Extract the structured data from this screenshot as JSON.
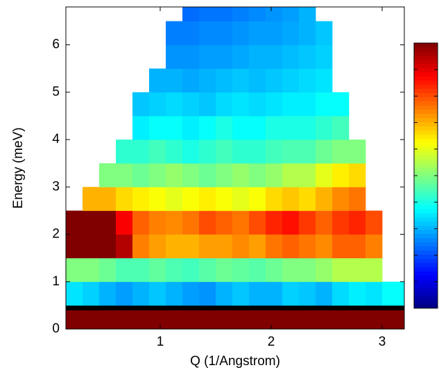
{
  "chart_data": {
    "type": "heatmap",
    "x_label": "Q (1/Angstrom)",
    "y_label": "Energy (meV)",
    "xlim": [
      0.15,
      3.2
    ],
    "ylim": [
      0,
      6.8
    ],
    "xticks": [
      1,
      2,
      3
    ],
    "yticks": [
      0,
      1,
      2,
      3,
      4,
      5,
      6
    ],
    "x_edges": [
      0.15,
      0.3,
      0.45,
      0.6,
      0.75,
      0.9,
      1.05,
      1.2,
      1.35,
      1.5,
      1.65,
      1.8,
      1.95,
      2.1,
      2.25,
      2.4,
      2.55,
      2.7,
      2.85,
      3.0,
      3.2
    ],
    "y_edges": [
      0,
      0.4,
      0.5,
      1,
      1.5,
      2,
      2.5,
      3,
      3.5,
      4,
      4.5,
      5,
      5.5,
      6,
      6.5,
      6.8
    ],
    "zlim": [
      0,
      1
    ],
    "zticks": [
      0.1,
      0.2,
      0.3,
      0.4,
      0.5,
      0.6,
      0.7,
      0.8,
      0.9
    ],
    "colormap": "jet",
    "under_color": "#000000",
    "z": [
      [
        1,
        1,
        1,
        1,
        1,
        1,
        1,
        1,
        1,
        1,
        1,
        1,
        1,
        1,
        1,
        1,
        1,
        1,
        1,
        1
      ],
      [
        -0.1,
        -0.1,
        -0.1,
        -0.1,
        -0.1,
        -0.1,
        -0.1,
        -0.1,
        -0.1,
        -0.1,
        -0.1,
        -0.1,
        -0.1,
        -0.1,
        -0.1,
        -0.1,
        -0.1,
        -0.1,
        -0.1,
        -0.1
      ],
      [
        0.35,
        0.33,
        0.3,
        0.28,
        0.3,
        0.32,
        0.3,
        0.28,
        0.27,
        0.3,
        0.32,
        0.3,
        0.3,
        0.33,
        0.32,
        0.3,
        0.34,
        0.36,
        0.35,
        0.38
      ],
      [
        0.5,
        0.5,
        0.48,
        0.45,
        0.45,
        0.47,
        0.45,
        0.44,
        0.46,
        0.48,
        0.47,
        0.46,
        0.48,
        0.5,
        0.5,
        0.52,
        0.55,
        0.55,
        0.55,
        null
      ],
      [
        1,
        1,
        1,
        0.95,
        0.75,
        0.72,
        0.7,
        0.7,
        0.72,
        0.72,
        0.74,
        0.72,
        0.76,
        0.78,
        0.76,
        0.74,
        0.78,
        0.78,
        0.75,
        null
      ],
      [
        1,
        1,
        1,
        0.88,
        0.78,
        0.75,
        0.74,
        0.76,
        0.8,
        0.78,
        0.76,
        0.8,
        0.84,
        0.86,
        0.82,
        0.78,
        0.82,
        0.84,
        0.8,
        null
      ],
      [
        null,
        0.7,
        0.7,
        0.66,
        0.64,
        0.62,
        0.6,
        0.62,
        0.64,
        0.62,
        0.6,
        0.62,
        0.66,
        0.68,
        0.66,
        0.7,
        0.74,
        0.76,
        null,
        null
      ],
      [
        null,
        null,
        0.5,
        0.5,
        0.48,
        0.5,
        0.52,
        0.5,
        0.48,
        0.5,
        0.52,
        0.5,
        0.52,
        0.55,
        0.55,
        0.6,
        0.64,
        0.66,
        null,
        null
      ],
      [
        null,
        null,
        null,
        0.42,
        0.42,
        0.44,
        0.42,
        0.4,
        0.42,
        0.44,
        0.42,
        0.42,
        0.44,
        0.45,
        0.45,
        0.48,
        0.5,
        0.5,
        null,
        null
      ],
      [
        null,
        null,
        null,
        null,
        0.36,
        0.38,
        0.38,
        0.36,
        0.38,
        0.4,
        0.38,
        0.38,
        0.4,
        0.4,
        0.4,
        0.42,
        0.44,
        null,
        null,
        null
      ],
      [
        null,
        null,
        null,
        null,
        0.32,
        0.33,
        0.34,
        0.33,
        0.32,
        0.34,
        0.35,
        0.34,
        0.35,
        0.36,
        0.36,
        0.38,
        0.38,
        null,
        null,
        null
      ],
      [
        null,
        null,
        null,
        null,
        null,
        0.3,
        0.3,
        0.29,
        0.3,
        0.31,
        0.32,
        0.31,
        0.32,
        0.33,
        0.34,
        0.35,
        null,
        null,
        null,
        null
      ],
      [
        null,
        null,
        null,
        null,
        null,
        null,
        0.27,
        0.27,
        0.28,
        0.28,
        0.29,
        0.3,
        0.3,
        0.31,
        0.32,
        0.33,
        null,
        null,
        null,
        null
      ],
      [
        null,
        null,
        null,
        null,
        null,
        null,
        0.25,
        0.25,
        0.26,
        0.26,
        0.27,
        0.28,
        0.28,
        0.29,
        0.3,
        0.32,
        null,
        null,
        null,
        null
      ],
      [
        null,
        null,
        null,
        null,
        null,
        null,
        null,
        0.23,
        0.24,
        0.24,
        0.25,
        0.26,
        0.27,
        0.28,
        0.3,
        null,
        null,
        null,
        null,
        null
      ]
    ]
  }
}
